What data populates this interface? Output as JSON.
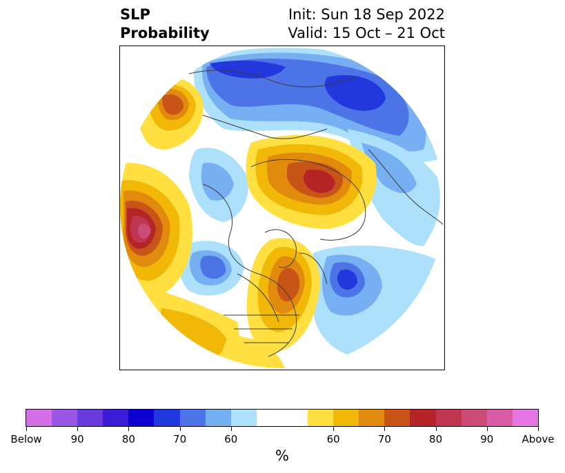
{
  "title": {
    "line1": "SLP",
    "line2": "Probability"
  },
  "subtitle": {
    "init": "Init: Sun 18 Sep 2022",
    "valid": "Valid: 15 Oct – 21 Oct"
  },
  "colorbar": {
    "unit": "%",
    "labels": [
      "Below",
      "90",
      "80",
      "70",
      "60",
      "60",
      "70",
      "80",
      "90",
      "Above"
    ],
    "colors": [
      "#d46fe8",
      "#9a57e3",
      "#6a3bdc",
      "#3a1cd6",
      "#0b00d0",
      "#2238dc",
      "#4d74e6",
      "#76b0f2",
      "#ade0fb",
      "#ffffff",
      "#ffe040",
      "#f2b807",
      "#e18b0e",
      "#c95418",
      "#b52426",
      "#be3650",
      "#cb4d77",
      "#d95ca6",
      "#e676e3"
    ]
  },
  "map": {
    "palette": {
      "below": [
        "#ade0fb",
        "#76b0f2",
        "#4d74e6",
        "#2238dc"
      ],
      "above": [
        "#ffe040",
        "#f2b807",
        "#e18b0e",
        "#c95418",
        "#b52426",
        "#be3650",
        "#cb4d77"
      ]
    }
  }
}
